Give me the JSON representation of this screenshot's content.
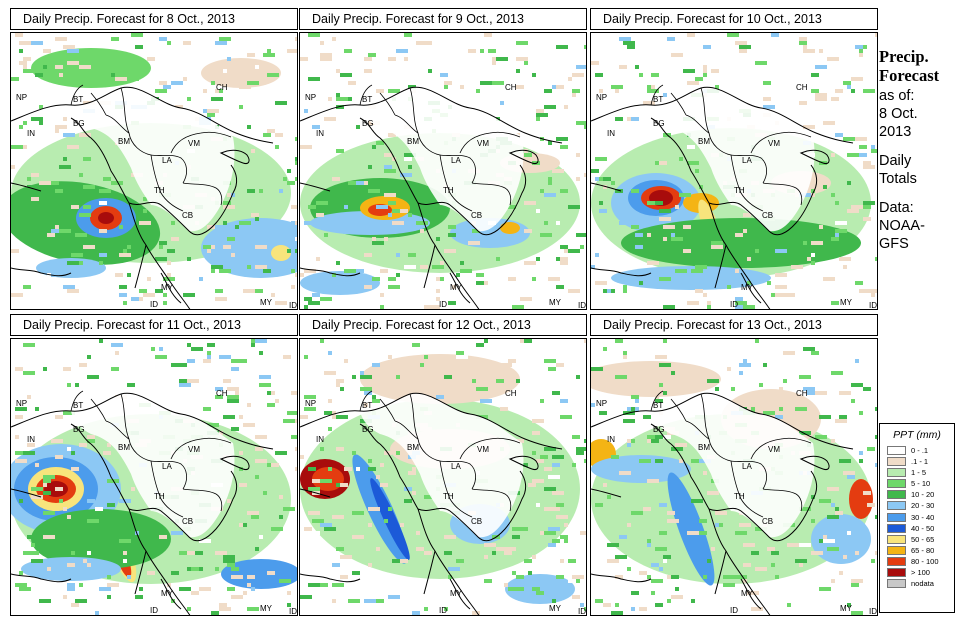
{
  "panels": [
    {
      "title": "Daily Precip. Forecast for  8 Oct., 2013"
    },
    {
      "title": "Daily Precip. Forecast for  9 Oct., 2013"
    },
    {
      "title": "Daily Precip. Forecast for  10 Oct., 2013"
    },
    {
      "title": "Daily Precip. Forecast for  11 Oct., 2013"
    },
    {
      "title": "Daily Precip. Forecast for  12 Oct., 2013"
    },
    {
      "title": "Daily Precip. Forecast for  13 Oct., 2013"
    }
  ],
  "country_labels": {
    "ch": "CH",
    "np": "NP",
    "bt": "BT",
    "bg": "BG",
    "in": "IN",
    "bm": "BM",
    "vm": "VM",
    "la": "LA",
    "th": "TH",
    "cb": "CB",
    "my": "MY",
    "id": "ID"
  },
  "side_info": {
    "heading1": "Precip.",
    "heading2": "Forecast",
    "asof": "as of:",
    "date1": "8 Oct.",
    "date2": "2013",
    "daily": "Daily",
    "totals": "Totals",
    "data_label": "Data:",
    "source1": "NOAA-",
    "source2": "GFS"
  },
  "legend": {
    "title": "PPT (mm)",
    "items": [
      {
        "label": "0 - .1",
        "color": "#ffffff"
      },
      {
        "label": ".1 - 1",
        "color": "#f0dcc8"
      },
      {
        "label": "1 - 5",
        "color": "#b8ecb0"
      },
      {
        "label": "5 - 10",
        "color": "#6ed86a"
      },
      {
        "label": "10 - 20",
        "color": "#40b84c"
      },
      {
        "label": "20 - 30",
        "color": "#8cc8f4"
      },
      {
        "label": "30 - 40",
        "color": "#4c9cec"
      },
      {
        "label": "40 - 50",
        "color": "#1c5ad8"
      },
      {
        "label": "50 - 65",
        "color": "#f8e47c"
      },
      {
        "label": "65 - 80",
        "color": "#f4b414"
      },
      {
        "label": "80 - 100",
        "color": "#e43c10"
      },
      {
        "label": "> 100",
        "color": "#a80c0c"
      },
      {
        "label": "nodata",
        "color": "#c8c8c8"
      }
    ]
  }
}
